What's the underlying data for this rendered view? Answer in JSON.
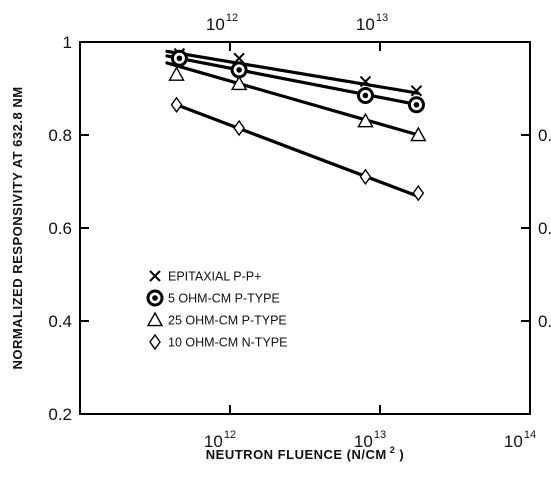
{
  "chart_data": {
    "type": "scatter",
    "title": "",
    "xlabel": "NEUTRON FLUENCE (N/CM",
    "xlabel_sup": "2",
    "xlabel_end": " )",
    "ylabel": "NORMALIZED RESPONSIVITY AT 632.8 NM",
    "x_scale": "log",
    "xlim": [
      100000000000.0,
      100000000000000.0
    ],
    "ylim": [
      0.2,
      1.0
    ],
    "y_ticks": [
      {
        "value": 0.2,
        "label": "0.2"
      },
      {
        "value": 0.4,
        "label": "0.4"
      },
      {
        "value": 0.6,
        "label": "0.6"
      },
      {
        "value": 0.8,
        "label": "0.8"
      },
      {
        "value": 1.0,
        "label": "1"
      }
    ],
    "x_ticks_bottom": [
      {
        "value": 1000000000000.0,
        "base": "10",
        "exp": "12"
      },
      {
        "value": 10000000000000.0,
        "base": "10",
        "exp": "13"
      },
      {
        "value": 100000000000000.0,
        "base": "10",
        "exp": "14"
      }
    ],
    "x_ticks_top": [
      {
        "value": 1000000000000.0,
        "base": "10",
        "exp": "12"
      },
      {
        "value": 10000000000000.0,
        "base": "10",
        "exp": "13"
      }
    ],
    "right_axis_partial_labels": [
      "0.",
      "0.",
      "0."
    ],
    "grid": false,
    "legend_position": "lower-left inside",
    "series": [
      {
        "name": "EPITAXIAL P-P+",
        "marker": "x",
        "x": [
          460000000000.0,
          1150000000000.0,
          8000000000000.0,
          17500000000000.0
        ],
        "y": [
          0.975,
          0.965,
          0.915,
          0.895
        ],
        "fit": [
          [
            380000000000.0,
            0.98
          ],
          [
            18000000000000.0,
            0.89
          ]
        ]
      },
      {
        "name": "5 OHM-CM P-TYPE",
        "marker": "circle-dot",
        "x": [
          460000000000.0,
          1150000000000.0,
          8000000000000.0,
          17500000000000.0
        ],
        "y": [
          0.965,
          0.94,
          0.885,
          0.865
        ],
        "fit": [
          [
            380000000000.0,
            0.97
          ],
          [
            18000000000000.0,
            0.865
          ]
        ]
      },
      {
        "name": "25 OHM-CM P-TYPE",
        "marker": "triangle",
        "x": [
          440000000000.0,
          1150000000000.0,
          8000000000000.0,
          18000000000000.0
        ],
        "y": [
          0.93,
          0.91,
          0.83,
          0.8
        ],
        "fit": [
          [
            380000000000.0,
            0.955
          ],
          [
            18000000000000.0,
            0.8
          ]
        ]
      },
      {
        "name": "10 OHM-CM N-TYPE",
        "marker": "diamond",
        "x": [
          440000000000.0,
          1150000000000.0,
          8000000000000.0,
          18000000000000.0
        ],
        "y": [
          0.865,
          0.815,
          0.71,
          0.675
        ],
        "fit": [
          [
            440000000000.0,
            0.865
          ],
          [
            18000000000000.0,
            0.668
          ]
        ]
      }
    ]
  }
}
